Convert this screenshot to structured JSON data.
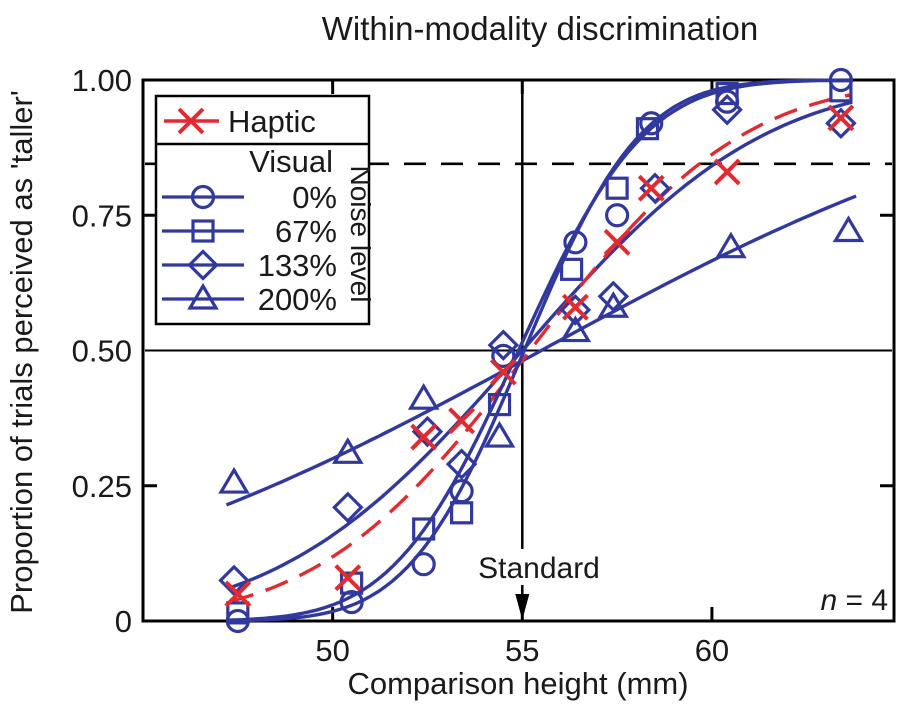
{
  "chart_data": {
    "type": "scatter",
    "title": "Within-modality discrimination",
    "xlabel": "Comparison height (mm)",
    "ylabel": "Proportion of trials perceived as 'taller'",
    "xlim": [
      45.0,
      64.8
    ],
    "ylim": [
      0,
      1
    ],
    "xticks": [
      50,
      55,
      60
    ],
    "xtick_labels": [
      "50",
      "55",
      "60"
    ],
    "yticks": [
      0,
      0.25,
      0.5,
      0.75,
      1
    ],
    "ytick_labels": [
      "0",
      "0.25",
      "0.50",
      "0.75",
      "1.00"
    ],
    "y_minor_tick_values": [
      0.25,
      0.75
    ],
    "grid": false,
    "colors": {
      "haptic": "#e22b30",
      "visual": "#31389e",
      "axis": "#000000"
    },
    "reference_lines": {
      "pse_line": {
        "y": 0.5,
        "style": "solid"
      },
      "threshold_line": {
        "y": 0.845,
        "style": "dashed"
      },
      "standard_line": {
        "x": 55,
        "style": "solid",
        "arrow": "down"
      }
    },
    "annotations": {
      "standard": "Standard",
      "n_var": "n",
      "n_rest": " = 4"
    },
    "legend": {
      "position": "top-left",
      "haptic_label": "Haptic",
      "visual_header": "Visual",
      "noise_header": "Noise level"
    },
    "series": [
      {
        "name": "Haptic",
        "legend_label": "Haptic",
        "marker": "x",
        "color_key": "haptic",
        "line_style": "dashed",
        "fit": {
          "type": "cumulative_gaussian",
          "mu": 55.2,
          "sigma": 4.4,
          "range": [
            47.3,
            63.7
          ]
        },
        "points": [
          [
            47.5,
            0.05
          ],
          [
            50.4,
            0.08
          ],
          [
            52.4,
            0.34
          ],
          [
            53.4,
            0.37
          ],
          [
            54.5,
            0.46
          ],
          [
            56.4,
            0.58
          ],
          [
            57.5,
            0.7
          ],
          [
            58.4,
            0.8
          ],
          [
            60.4,
            0.83
          ],
          [
            63.4,
            0.93
          ]
        ]
      },
      {
        "name": "Visual 0% noise",
        "legend_label": "0%",
        "marker": "circle",
        "color_key": "visual",
        "line_style": "solid",
        "fit": {
          "type": "cumulative_gaussian",
          "mu": 55.05,
          "sigma": 2.4,
          "range": [
            47.2,
            63.6
          ]
        },
        "points": [
          [
            47.5,
            0.0
          ],
          [
            50.5,
            0.035
          ],
          [
            52.4,
            0.105
          ],
          [
            53.4,
            0.24
          ],
          [
            54.5,
            0.49
          ],
          [
            56.4,
            0.7
          ],
          [
            57.5,
            0.75
          ],
          [
            58.4,
            0.92
          ],
          [
            60.4,
            0.96
          ],
          [
            63.4,
            1.0
          ]
        ]
      },
      {
        "name": "Visual 67% noise",
        "legend_label": "67%",
        "marker": "square",
        "color_key": "visual",
        "line_style": "solid",
        "fit": {
          "type": "cumulative_gaussian",
          "mu": 54.9,
          "sigma": 2.6,
          "range": [
            47.2,
            63.6
          ]
        },
        "points": [
          [
            47.5,
            0.015
          ],
          [
            50.5,
            0.07
          ],
          [
            52.4,
            0.17
          ],
          [
            53.4,
            0.2
          ],
          [
            54.4,
            0.4
          ],
          [
            56.3,
            0.65
          ],
          [
            57.5,
            0.8
          ],
          [
            58.3,
            0.91
          ],
          [
            60.4,
            0.975
          ],
          [
            63.4,
            0.98
          ]
        ]
      },
      {
        "name": "Visual 133% noise",
        "legend_label": "133%",
        "marker": "diamond",
        "color_key": "visual",
        "line_style": "solid",
        "fit": {
          "type": "cumulative_gaussian",
          "mu": 55.0,
          "sigma": 5.0,
          "range": [
            47.3,
            63.7
          ]
        },
        "points": [
          [
            47.4,
            0.075
          ],
          [
            50.4,
            0.21
          ],
          [
            52.5,
            0.35
          ],
          [
            53.4,
            0.29
          ],
          [
            54.5,
            0.51
          ],
          [
            56.4,
            0.575
          ],
          [
            57.4,
            0.6
          ],
          [
            58.5,
            0.8
          ],
          [
            60.4,
            0.945
          ],
          [
            63.4,
            0.92
          ]
        ]
      },
      {
        "name": "Visual 200% noise",
        "legend_label": "200%",
        "marker": "triangle",
        "color_key": "visual",
        "line_style": "solid",
        "fit": {
          "type": "cumulative_gaussian",
          "mu": 55.5,
          "sigma": 10.5,
          "range": [
            47.2,
            63.9
          ]
        },
        "points": [
          [
            47.4,
            0.255
          ],
          [
            50.4,
            0.31
          ],
          [
            52.4,
            0.41
          ],
          [
            54.4,
            0.34
          ],
          [
            56.4,
            0.535
          ],
          [
            57.4,
            0.58
          ],
          [
            60.5,
            0.69
          ],
          [
            63.6,
            0.72
          ]
        ]
      }
    ],
    "sample_size": "n = 4"
  }
}
